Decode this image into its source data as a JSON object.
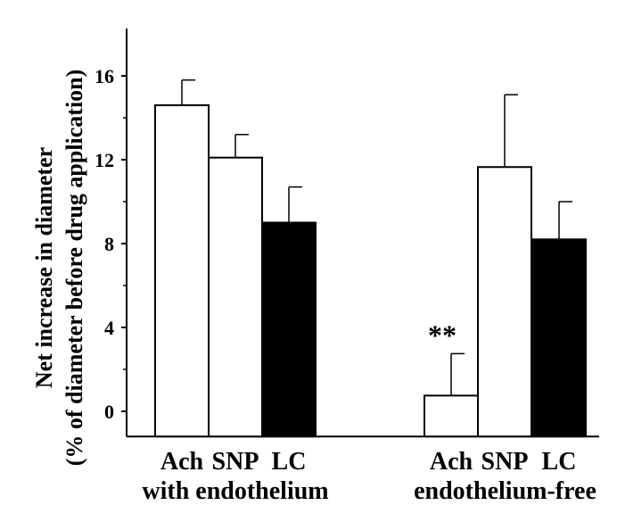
{
  "chart_data": {
    "type": "bar",
    "ylabel_line1": "Net increase in diameter",
    "ylabel_line2": "(% of diameter before drug application)",
    "ylim": [
      -1.2,
      17.0
    ],
    "yticks": [
      0,
      4,
      8,
      12,
      16
    ],
    "ytick_labels": [
      "0",
      "4",
      "8",
      "12",
      "16"
    ],
    "grid": false,
    "groups": [
      {
        "label": "with endothelium",
        "bars": [
          {
            "category": "Ach",
            "value": 14.6,
            "error": 1.2,
            "fill": "#ffffff"
          },
          {
            "category": "SNP",
            "value": 12.1,
            "error": 1.1,
            "fill": "#ffffff"
          },
          {
            "category": "LC",
            "value": 9.0,
            "error": 1.7,
            "fill": "#000000"
          }
        ]
      },
      {
        "label": "endothelium-free",
        "bars": [
          {
            "category": "Ach",
            "value": 0.75,
            "error": 2.0,
            "fill": "#ffffff",
            "annotation": "**"
          },
          {
            "category": "SNP",
            "value": 11.65,
            "error": 3.45,
            "fill": "#ffffff"
          },
          {
            "category": "LC",
            "value": 8.2,
            "error": 1.8,
            "fill": "#000000"
          }
        ]
      }
    ]
  }
}
